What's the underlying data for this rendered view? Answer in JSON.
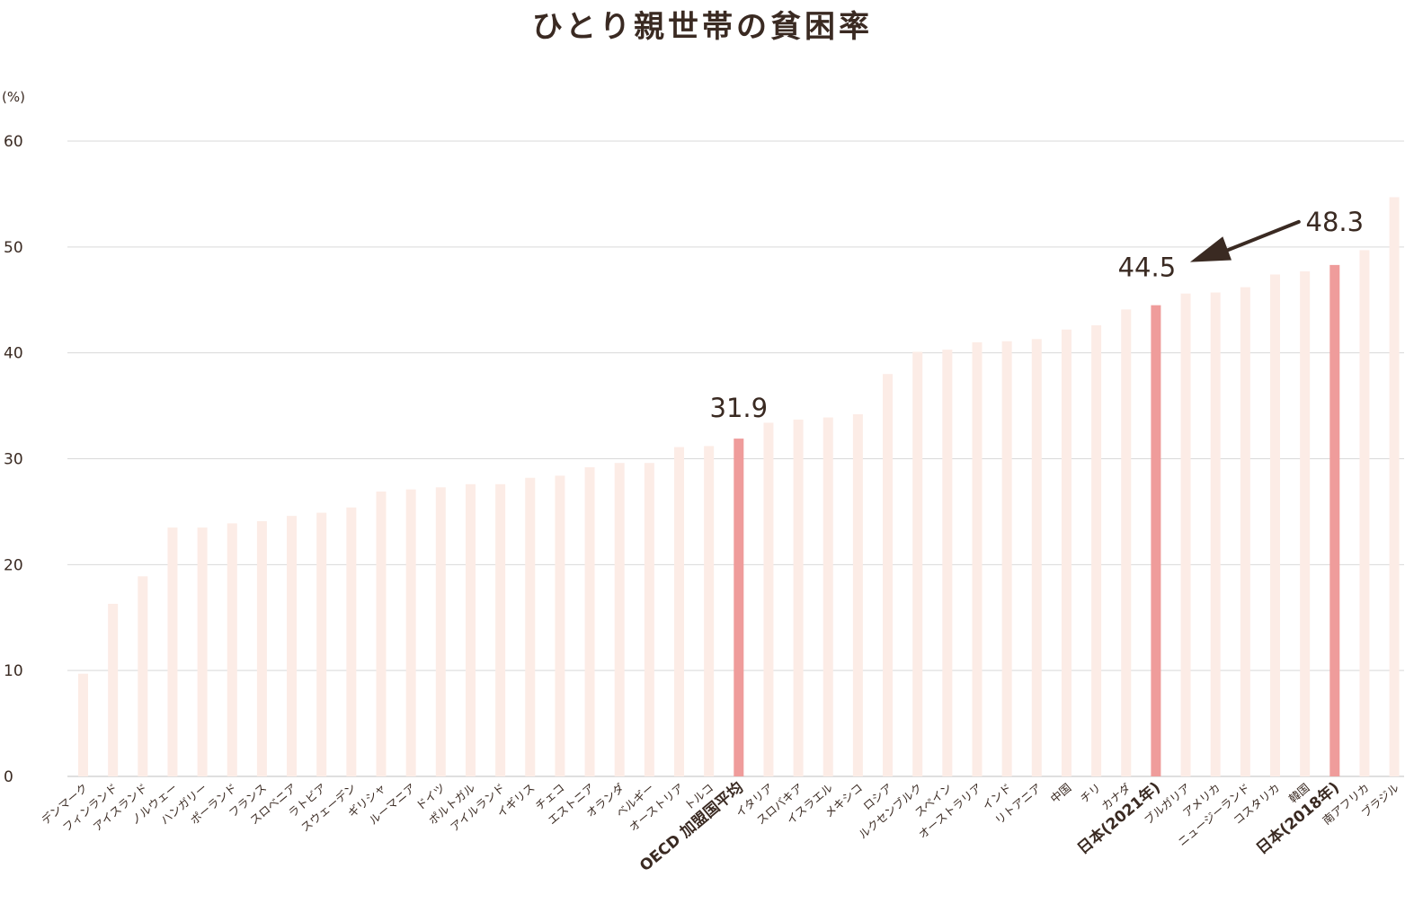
{
  "chart_data": {
    "type": "bar",
    "title": "ひとり親世帯の貧困率",
    "ylabel": "(%)",
    "ylim": [
      0,
      60
    ],
    "yticks": [
      0,
      10,
      20,
      30,
      40,
      50,
      60
    ],
    "grid": true,
    "colors": {
      "normal": "#fcece6",
      "highlight": "#ef9c9b",
      "text": "#3a2a22",
      "grid": "#d9d9d9"
    },
    "categories": [
      "デンマーク",
      "フィンランド",
      "アイスランド",
      "ノルウェー",
      "ハンガリー",
      "ポーランド",
      "フランス",
      "スロベニア",
      "ラトビア",
      "スウェーデン",
      "ギリシャ",
      "ルーマニア",
      "ドイツ",
      "ポルトガル",
      "アイルランド",
      "イギリス",
      "チェコ",
      "エストニア",
      "オランダ",
      "ベルギー",
      "オーストリア",
      "トルコ",
      "OECD 加盟国平均",
      "イタリア",
      "スロバキア",
      "イスラエル",
      "メキシコ",
      "ロシア",
      "ルクセンブルク",
      "スペイン",
      "オーストラリア",
      "インド",
      "リトアニア",
      "中国",
      "チリ",
      "カナダ",
      "日本(2021年)",
      "ブルガリア",
      "アメリカ",
      "ニュージーランド",
      "コスタリカ",
      "韓国",
      "日本(2018年)",
      "南アフリカ",
      "ブラジル"
    ],
    "values": [
      9.7,
      16.3,
      18.9,
      23.5,
      23.5,
      23.9,
      24.1,
      24.6,
      24.9,
      25.4,
      26.9,
      27.1,
      27.3,
      27.6,
      27.6,
      28.2,
      28.4,
      29.2,
      29.6,
      29.6,
      31.1,
      31.2,
      31.9,
      33.4,
      33.7,
      33.9,
      34.2,
      38.0,
      40.1,
      40.3,
      41.0,
      41.1,
      41.3,
      42.2,
      42.6,
      44.1,
      44.5,
      45.6,
      45.7,
      46.2,
      47.4,
      47.7,
      48.3,
      49.7,
      54.7
    ],
    "highlighted": [
      "OECD 加盟国平均",
      "日本(2021年)",
      "日本(2018年)"
    ],
    "annotations": [
      {
        "label": "31.9",
        "category": "OECD 加盟国平均"
      },
      {
        "label": "44.5",
        "category": "日本(2021年)"
      },
      {
        "label": "48.3",
        "category": "日本(2018年)",
        "arrow_to": "44.5"
      }
    ]
  }
}
